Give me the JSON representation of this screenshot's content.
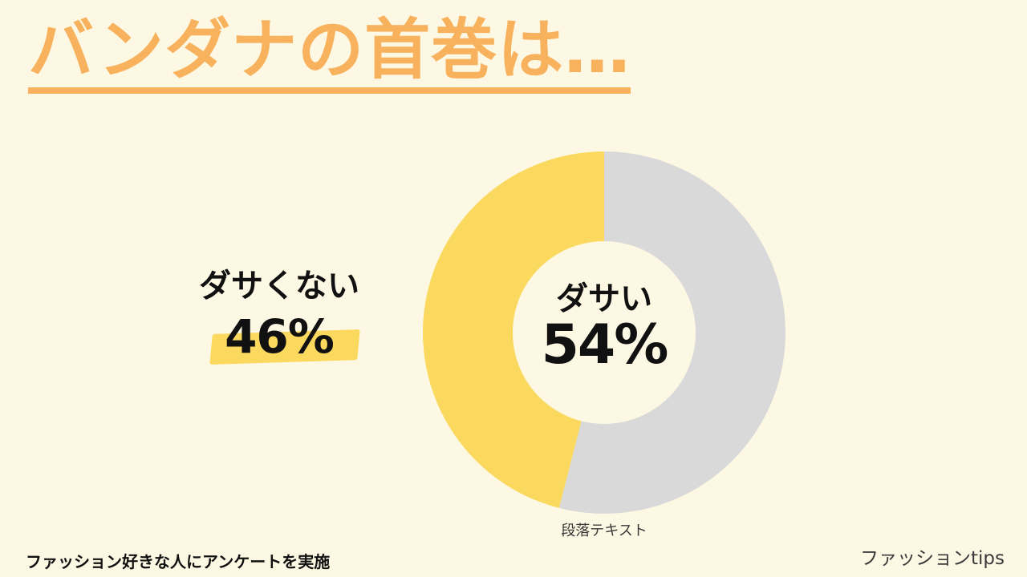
{
  "theme": {
    "background": "#FDF8E3",
    "accent_orange": "#F8B15C",
    "accent_yellow": "#FBD95E",
    "gray": "#D9D9D9",
    "text": "#111111",
    "muted_text": "#3A3A3A"
  },
  "slide": {
    "title": "バンダナの首巻は…",
    "callout": {
      "label": "ダサくない",
      "value": "46%"
    },
    "center": {
      "label": "ダサい",
      "value": "54%"
    },
    "caption": "段落テキスト",
    "footer_note": "ファッション好きな人にアンケートを実施",
    "footer_brand": "ファッションtips"
  },
  "chart_data": {
    "type": "pie",
    "donut": true,
    "title": "バンダナの首巻は…",
    "categories": [
      "ダサい",
      "ダサくない"
    ],
    "values": [
      54,
      46
    ],
    "unit": "%",
    "slices": [
      {
        "label": "ダサい",
        "value": 54,
        "color": "#D9D9D9"
      },
      {
        "label": "ダサくない",
        "value": 46,
        "color": "#FBD95E"
      }
    ],
    "start_angle_deg": 0,
    "direction": "clockwise",
    "inner_radius_ratio": 0.5,
    "legend_position": "none",
    "annotations": [
      "ダサい 54% shown in donut center",
      "ダサくない 46% shown as left callout with yellow marker highlight",
      "caption below chart: 段落テキスト"
    ]
  }
}
